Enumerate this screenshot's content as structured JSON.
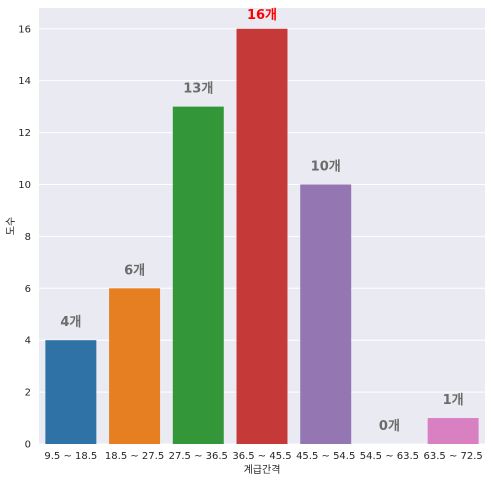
{
  "chart_data": {
    "type": "bar",
    "xlabel": "계급간격",
    "ylabel": "도수",
    "categories": [
      "9.5 ~ 18.5",
      "18.5 ~ 27.5",
      "27.5 ~ 36.5",
      "36.5 ~ 45.5",
      "45.5 ~ 54.5",
      "54.5 ~ 63.5",
      "63.5 ~ 72.5"
    ],
    "values": [
      4,
      6,
      13,
      16,
      10,
      0,
      1
    ],
    "data_labels": [
      "4개",
      "6개",
      "13개",
      "16개",
      "10개",
      "0개",
      "1개"
    ],
    "bar_colors": [
      "#2e72a6",
      "#e67f22",
      "#33973a",
      "#c53a38",
      "#9376b2",
      "#8d6a5e",
      "#d980c3"
    ],
    "label_color": "#6b6b6b",
    "highlight_label_color": "#ff0000",
    "highlight_index": 3,
    "ylim": [
      0,
      16.8
    ],
    "yticks": [
      0,
      2,
      4,
      6,
      8,
      10,
      12,
      14,
      16
    ],
    "grid": true,
    "background": "#eaeaf2"
  }
}
